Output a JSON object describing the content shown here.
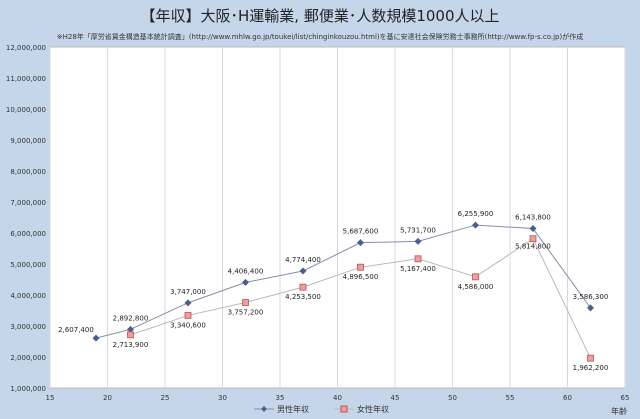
{
  "chart_data": {
    "type": "line",
    "title": "【年収】大阪･H運輸業, 郵便業･人数規模1000人以上",
    "subtitle": "※H28年「厚労省賃金構造基本統計調査」(http://www.mhlw.go.jp/toukei/list/chinginkouzou.html)を基に安達社会保険労務士事務所(http://www.fp-s.co.jp)が作成",
    "xlabel": "年齢",
    "ylabel": "",
    "xlim": [
      15,
      65
    ],
    "ylim": [
      1000000,
      12000000
    ],
    "xticks": [
      15,
      20,
      25,
      30,
      35,
      40,
      45,
      50,
      55,
      60,
      65
    ],
    "yticks": [
      1000000,
      2000000,
      3000000,
      4000000,
      5000000,
      6000000,
      7000000,
      8000000,
      9000000,
      10000000,
      11000000,
      12000000
    ],
    "grid": "vertical",
    "legend": "bottom",
    "series": [
      {
        "name": "男性年収",
        "color": "#4a5f8a",
        "marker": "diamond",
        "x": [
          19,
          22,
          27,
          32,
          37,
          42,
          47,
          52,
          57,
          62
        ],
        "values": [
          2607400,
          2892800,
          3747000,
          4406400,
          4774400,
          5687600,
          5731700,
          6255900,
          6143800,
          3586300
        ],
        "labels": [
          "2,607,400",
          "2,892,800",
          "3,747,000",
          "4,406,400",
          "4,774,400",
          "5,687,600",
          "5,731,700",
          "6,255,900",
          "6,143,800",
          "3,586,300"
        ]
      },
      {
        "name": "女性年収",
        "color": "#c0504d",
        "marker": "square",
        "x": [
          22,
          27,
          32,
          37,
          42,
          47,
          52,
          57,
          62
        ],
        "values": [
          2713900,
          3340600,
          3757200,
          4253500,
          4896500,
          5167400,
          4586000,
          5814800,
          1962200
        ],
        "labels": [
          "2,713,900",
          "3,340,600",
          "3,757,200",
          "4,253,500",
          "4,896,500",
          "5,167,400",
          "4,586,000",
          "5,814,800",
          "1,962,200"
        ]
      }
    ]
  }
}
